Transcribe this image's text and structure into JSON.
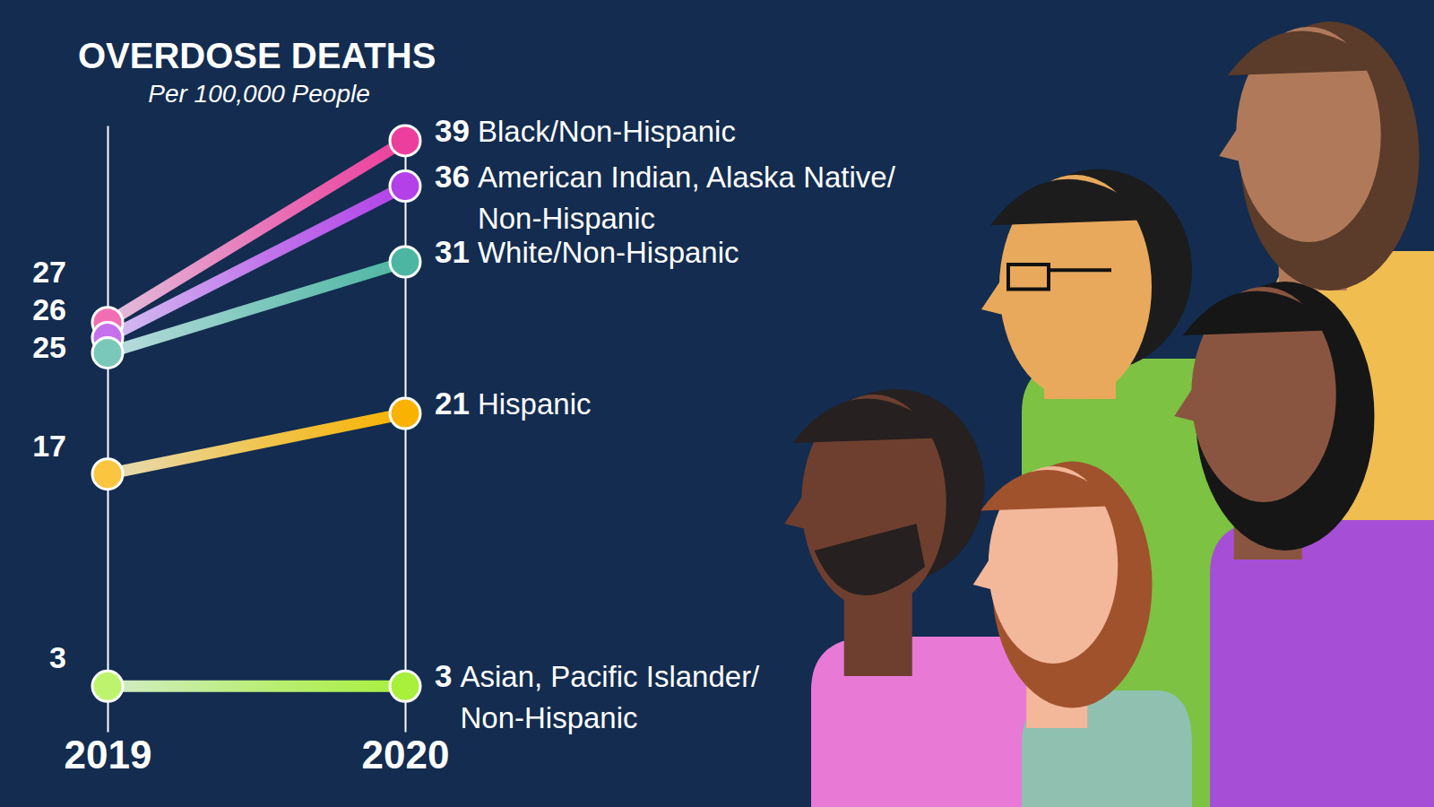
{
  "chart_data": {
    "type": "slope",
    "title": "OVERDOSE DEATHS",
    "subtitle": "Per 100,000 People",
    "categories": [
      "2019",
      "2020"
    ],
    "series": [
      {
        "name": "Black/Non-Hispanic",
        "color": "#ec3e9c",
        "values": [
          27,
          39
        ]
      },
      {
        "name": "American Indian, Alaska Native/Non-Hispanic",
        "color": "#b340e8",
        "values": [
          26,
          36
        ]
      },
      {
        "name": "White/Non-Hispanic",
        "color": "#4db6a2",
        "values": [
          25,
          31
        ]
      },
      {
        "name": "Hispanic",
        "color": "#f9b200",
        "values": [
          17,
          21
        ]
      },
      {
        "name": "Asian, Pacific Islander/Non-Hispanic",
        "color": "#a8f03c",
        "values": [
          3,
          3
        ]
      }
    ],
    "ylim": [
      0,
      40
    ],
    "tick_labels": "x",
    "data_labels": true
  }
}
